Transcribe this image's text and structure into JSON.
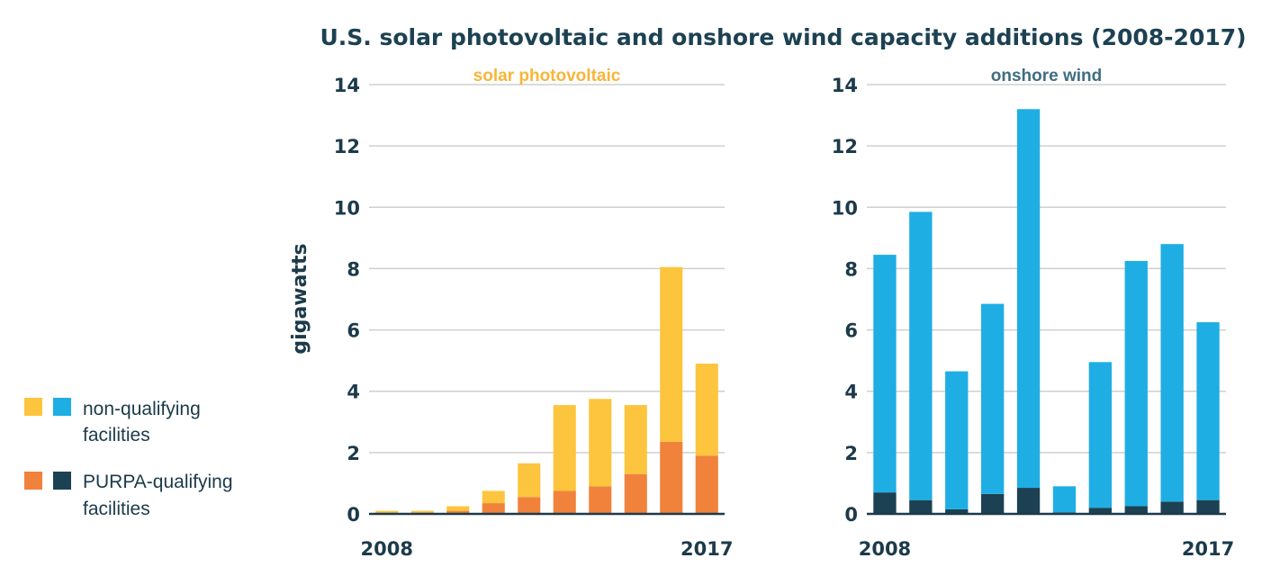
{
  "title": "U.S. solar photovoltaic and onshore wind capacity additions (2008-2017)",
  "ylabel": "gigawatts",
  "legend": {
    "non_qualifying": {
      "line1": "non-qualifying",
      "line2": "facilities"
    },
    "purpa_qualifying": {
      "line1": "PURPA-qualifying",
      "line2": "facilities"
    }
  },
  "colors": {
    "solar_non_qualifying": "#fdc53d",
    "solar_purpa": "#f0823c",
    "wind_non_qualifying": "#1eaee3",
    "wind_purpa": "#1c4152",
    "solar_subtitle": "#f7b53a",
    "wind_subtitle": "#3f6e82"
  },
  "chart_data": [
    {
      "type": "bar",
      "stacked": true,
      "subtitle": "solar photovoltaic",
      "x": [
        2008,
        2009,
        2010,
        2011,
        2012,
        2013,
        2014,
        2015,
        2016,
        2017
      ],
      "x_tick_labels": [
        "2008",
        "2017"
      ],
      "ylabel": "gigawatts",
      "ylim": [
        0,
        14
      ],
      "yticks": [
        0,
        2,
        4,
        6,
        8,
        10,
        12,
        14
      ],
      "grid": true,
      "series": [
        {
          "name": "PURPA-qualifying facilities",
          "values": [
            0.05,
            0.05,
            0.1,
            0.35,
            0.55,
            0.75,
            0.9,
            1.3,
            2.35,
            1.9
          ]
        },
        {
          "name": "non-qualifying facilities",
          "values": [
            0.05,
            0.05,
            0.15,
            0.4,
            1.1,
            2.8,
            2.85,
            2.25,
            5.7,
            3.0
          ]
        }
      ]
    },
    {
      "type": "bar",
      "stacked": true,
      "subtitle": "onshore wind",
      "x": [
        2008,
        2009,
        2010,
        2011,
        2012,
        2013,
        2014,
        2015,
        2016,
        2017
      ],
      "x_tick_labels": [
        "2008",
        "2017"
      ],
      "ylim": [
        0,
        14
      ],
      "yticks": [
        0,
        2,
        4,
        6,
        8,
        10,
        12,
        14
      ],
      "grid": true,
      "series": [
        {
          "name": "PURPA-qualifying facilities",
          "values": [
            0.7,
            0.45,
            0.15,
            0.65,
            0.85,
            0.05,
            0.2,
            0.25,
            0.4,
            0.45
          ]
        },
        {
          "name": "non-qualifying facilities",
          "values": [
            7.75,
            9.4,
            4.5,
            6.2,
            12.35,
            0.85,
            4.75,
            8.0,
            8.4,
            5.8
          ]
        }
      ]
    }
  ]
}
